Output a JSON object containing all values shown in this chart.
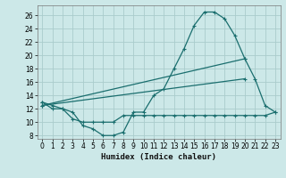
{
  "xlabel": "Humidex (Indice chaleur)",
  "bg_color": "#cce8e8",
  "line_color": "#1a6e6e",
  "grid_color": "#aacccc",
  "xlim": [
    -0.5,
    23.5
  ],
  "ylim": [
    7.5,
    27.5
  ],
  "xtick_labels": [
    "0",
    "1",
    "2",
    "3",
    "4",
    "5",
    "6",
    "7",
    "8",
    "9",
    "10",
    "11",
    "12",
    "13",
    "14",
    "15",
    "16",
    "17",
    "18",
    "19",
    "20",
    "21",
    "22",
    "23"
  ],
  "yticks": [
    8,
    10,
    12,
    14,
    16,
    18,
    20,
    22,
    24,
    26
  ],
  "series1_x": [
    0,
    1,
    2,
    3,
    4,
    5,
    6,
    7,
    8,
    9,
    10,
    11,
    12,
    13,
    14,
    15,
    16,
    17,
    18,
    19,
    20,
    21,
    22,
    23
  ],
  "series1_y": [
    13,
    12.5,
    12,
    11.5,
    9.5,
    9.0,
    8.0,
    8.0,
    8.5,
    11.5,
    11.5,
    14.0,
    15.0,
    18.0,
    21.0,
    24.5,
    26.5,
    26.5,
    25.5,
    23.0,
    19.5,
    16.5,
    12.5,
    11.5
  ],
  "series2_x": [
    0,
    1,
    2,
    3,
    4,
    5,
    6,
    7,
    8,
    9,
    10,
    11,
    12,
    13,
    14,
    15,
    16,
    17,
    18,
    19,
    20,
    21,
    22,
    23
  ],
  "series2_y": [
    13,
    12.0,
    12.0,
    10.5,
    10.0,
    10.0,
    10.0,
    10.0,
    11.0,
    11.0,
    11.0,
    11.0,
    11.0,
    11.0,
    11.0,
    11.0,
    11.0,
    11.0,
    11.0,
    11.0,
    11.0,
    11.0,
    11.0,
    11.5
  ],
  "series3_x": [
    0,
    20
  ],
  "series3_y": [
    12.5,
    19.5
  ],
  "series4_x": [
    0,
    20
  ],
  "series4_y": [
    12.5,
    16.5
  ]
}
